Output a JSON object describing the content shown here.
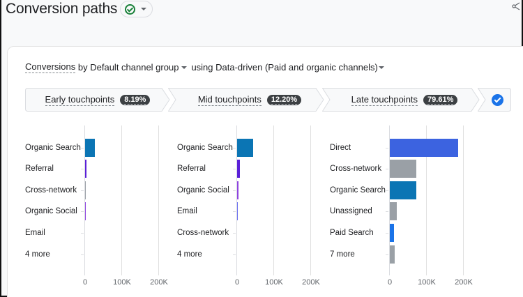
{
  "header": {
    "title": "Conversion paths",
    "status_icon": "check-circle-icon",
    "dropdown_icon": "caret-down-icon",
    "share_icon": "share-icon"
  },
  "selector": {
    "metric": "Conversions",
    "by_text": " by ",
    "dimension": "Default channel group",
    "using_text": "using ",
    "model": "Data-driven (Paid and organic channels)"
  },
  "tabs": [
    {
      "label": "Early touchpoints",
      "percent": "8.19%"
    },
    {
      "label": "Mid touchpoints",
      "percent": "12.20%"
    },
    {
      "label": "Late touchpoints",
      "percent": "79.61%"
    },
    {
      "icon": "check-circle-filled-icon",
      "selected": true
    }
  ],
  "colors": {
    "organic_search": "#0b75b4",
    "referral": "#5a20d8",
    "cross_network": "#9aa0a6",
    "organic_social": "#8e44e0",
    "email": "#6a6ef0",
    "direct": "#3c63e0",
    "unassigned": "#9aa0a6",
    "paid_search": "#1a73e8",
    "more": "#9aa0a6",
    "accent": "#1a73e8",
    "success": "#188038"
  },
  "chart_data": [
    {
      "type": "bar",
      "title": "Early touchpoints",
      "orientation": "horizontal",
      "categories": [
        "Organic Search",
        "Referral",
        "Cross-network",
        "Organic Social",
        "Email",
        "4 more"
      ],
      "values": [
        27000,
        4000,
        2000,
        1500,
        0,
        0
      ],
      "xlim": [
        0,
        200000
      ],
      "xticks": [
        "0",
        "100K",
        "200K"
      ],
      "grid": true
    },
    {
      "type": "bar",
      "title": "Mid touchpoints",
      "orientation": "horizontal",
      "categories": [
        "Organic Search",
        "Referral",
        "Organic Social",
        "Email",
        "Cross-network",
        "4 more"
      ],
      "values": [
        44000,
        7000,
        3000,
        2000,
        0,
        0
      ],
      "xlim": [
        0,
        200000
      ],
      "xticks": [
        "0",
        "100K",
        "200K"
      ],
      "grid": true
    },
    {
      "type": "bar",
      "title": "Late touchpoints",
      "orientation": "horizontal",
      "categories": [
        "Direct",
        "Cross-network",
        "Organic Search",
        "Unassigned",
        "Paid Search",
        "7 more"
      ],
      "values": [
        185000,
        72000,
        72000,
        18000,
        11000,
        13000
      ],
      "xlim": [
        0,
        200000
      ],
      "xticks": [
        "0",
        "100K",
        "200K"
      ],
      "grid": true
    }
  ],
  "charts": [
    {
      "rows": [
        {
          "label": "Organic Search",
          "width": 14,
          "color": "#0b75b4"
        },
        {
          "label": "Referral",
          "width": 2,
          "color": "#5a20d8"
        },
        {
          "label": "Cross-network",
          "width": 1,
          "color": "#9aa0a6"
        },
        {
          "label": "Organic Social",
          "width": 1,
          "color": "#8e44e0"
        },
        {
          "label": "Email",
          "width": 0,
          "color": "#6a6ef0"
        },
        {
          "label": "4 more",
          "width": 0,
          "color": "#9aa0a6"
        }
      ],
      "ticks": [
        "0",
        "100K",
        "200K"
      ]
    },
    {
      "rows": [
        {
          "label": "Organic Search",
          "width": 23,
          "color": "#0b75b4"
        },
        {
          "label": "Referral",
          "width": 4,
          "color": "#5a20d8"
        },
        {
          "label": "Organic Social",
          "width": 2,
          "color": "#8e44e0"
        },
        {
          "label": "Email",
          "width": 1,
          "color": "#6a6ef0"
        },
        {
          "label": "Cross-network",
          "width": 0,
          "color": "#9aa0a6"
        },
        {
          "label": "4 more",
          "width": 0,
          "color": "#9aa0a6"
        }
      ],
      "ticks": [
        "0",
        "100K",
        "200K"
      ]
    },
    {
      "rows": [
        {
          "label": "Direct",
          "width": 98,
          "color": "#3c63e0"
        },
        {
          "label": "Cross-network",
          "width": 38,
          "color": "#9aa0a6"
        },
        {
          "label": "Organic Search",
          "width": 38,
          "color": "#0b75b4"
        },
        {
          "label": "Unassigned",
          "width": 10,
          "color": "#9aa0a6"
        },
        {
          "label": "Paid Search",
          "width": 6,
          "color": "#1a73e8"
        },
        {
          "label": "7 more",
          "width": 7,
          "color": "#9aa0a6"
        }
      ],
      "ticks": [
        "0",
        "100K",
        "200K"
      ]
    }
  ]
}
